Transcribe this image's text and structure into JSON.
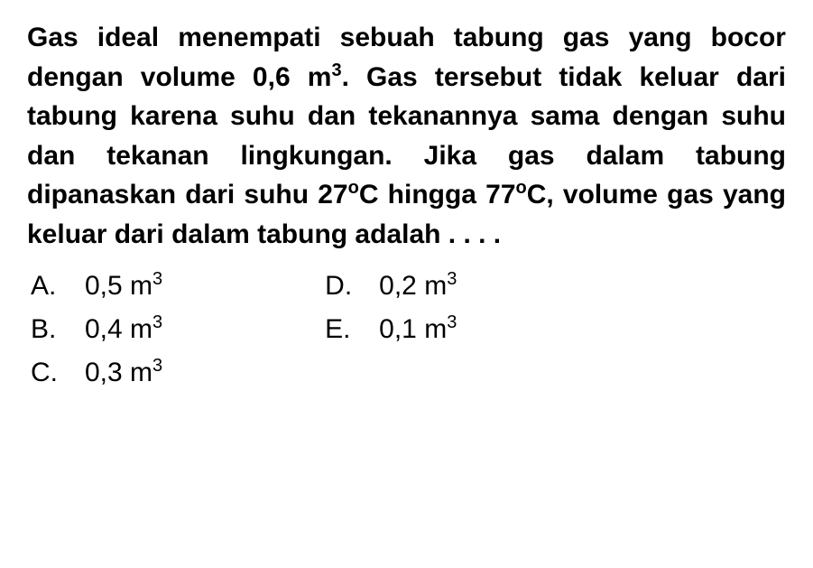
{
  "question": {
    "text_part1": "Gas ideal menempati sebuah tabung gas yang bocor dengan volume 0,6 m",
    "sup1": "3",
    "text_part2": ". Gas tersebut tidak keluar dari tabung karena suhu dan tekanannya sama dengan suhu dan tekanan lingkungan. Jika gas dalam tabung dipanaskan dari suhu 27",
    "deg1": "o",
    "text_part3": "C hingga 77",
    "deg2": "o",
    "text_part4": "C, volume gas yang keluar dari dalam tabung adalah . . . ."
  },
  "options": {
    "left": [
      {
        "letter": "A.",
        "value": "0,5 m",
        "sup": "3"
      },
      {
        "letter": "B.",
        "value": "0,4 m",
        "sup": "3"
      },
      {
        "letter": "C.",
        "value": "0,3 m",
        "sup": "3"
      }
    ],
    "right": [
      {
        "letter": "D.",
        "value": "0,2 m",
        "sup": "3"
      },
      {
        "letter": "E.",
        "value": "0,1 m",
        "sup": "3"
      }
    ]
  },
  "styling": {
    "background_color": "#ffffff",
    "text_color": "#000000",
    "question_fontsize": 30,
    "question_fontweight": "bold",
    "option_fontsize": 30,
    "sup_fontsize": 20,
    "line_height": 1.45,
    "font_family": "Arial"
  }
}
